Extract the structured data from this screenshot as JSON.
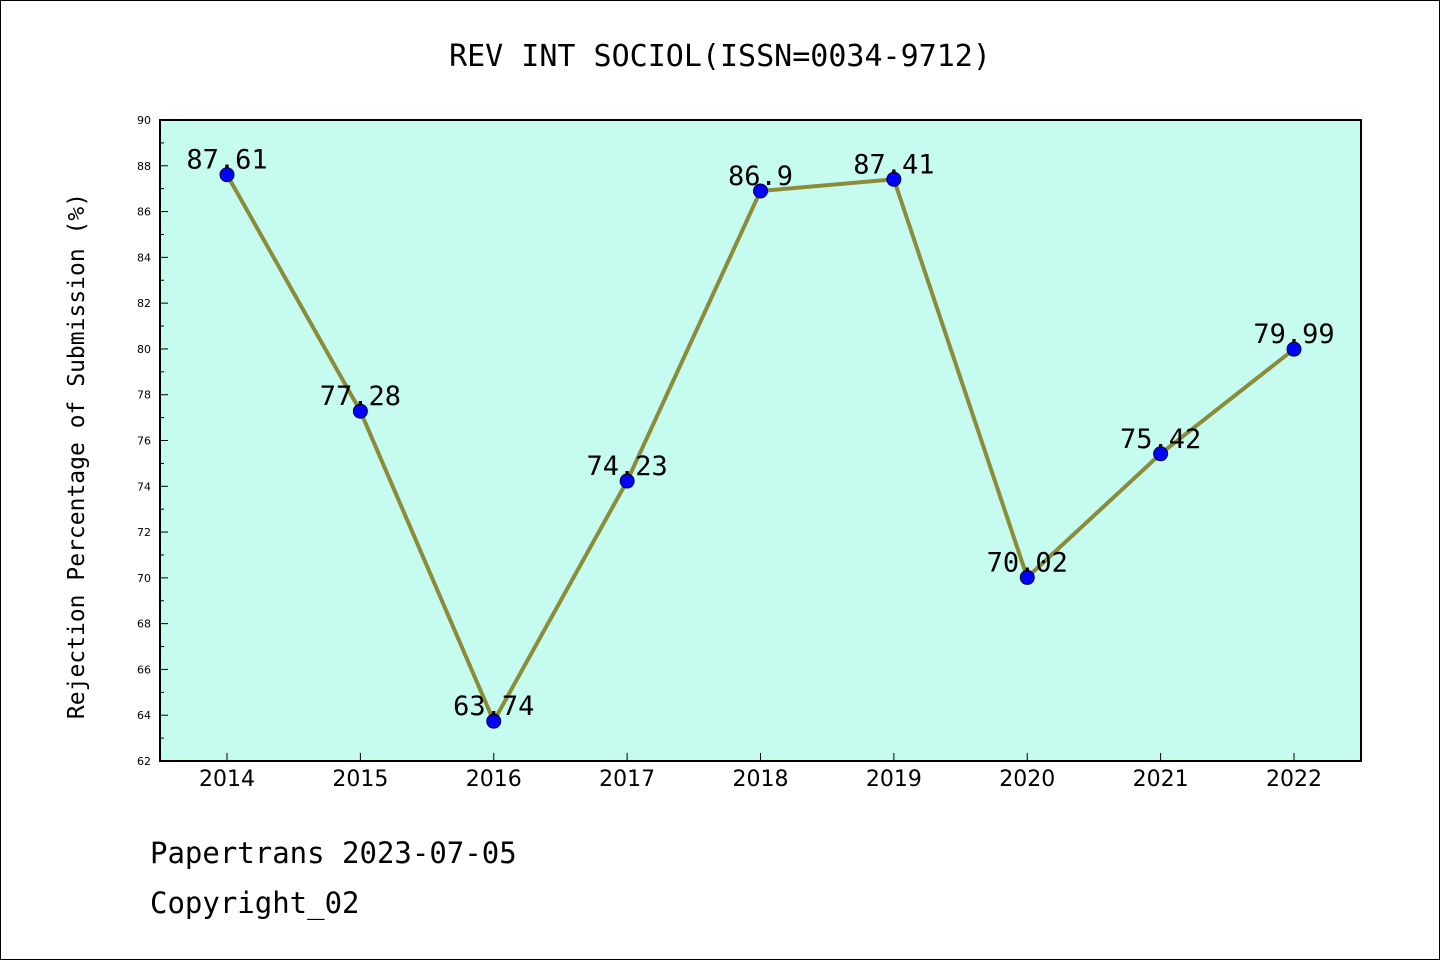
{
  "chart_data": {
    "type": "line",
    "title": "REV INT SOCIOL(ISSN=0034-9712)",
    "ylabel": "Rejection Percentage of Submission (%)",
    "xlabel": "",
    "categories": [
      "2014",
      "2015",
      "2016",
      "2017",
      "2018",
      "2019",
      "2020",
      "2021",
      "2022"
    ],
    "values": [
      87.61,
      77.28,
      63.74,
      74.23,
      86.9,
      87.41,
      70.02,
      75.42,
      79.99
    ],
    "data_labels": [
      "87.61",
      "77.28",
      "63.74",
      "74.23",
      "86.9",
      "87.41",
      "70.02",
      "75.42",
      "79.99"
    ],
    "ylim": [
      62,
      90
    ],
    "yticks": [
      "62",
      "64",
      "66",
      "68",
      "70",
      "72",
      "74",
      "76",
      "78",
      "80",
      "82",
      "84",
      "86",
      "88",
      "90"
    ],
    "grid": false,
    "legend": "none",
    "colors": {
      "plot_background": "#c6fbef",
      "line": "#8b8b3a",
      "marker": "#0000ff"
    }
  },
  "footer": {
    "line1": "Papertrans 2023-07-05",
    "line2": "Copyright_02"
  }
}
